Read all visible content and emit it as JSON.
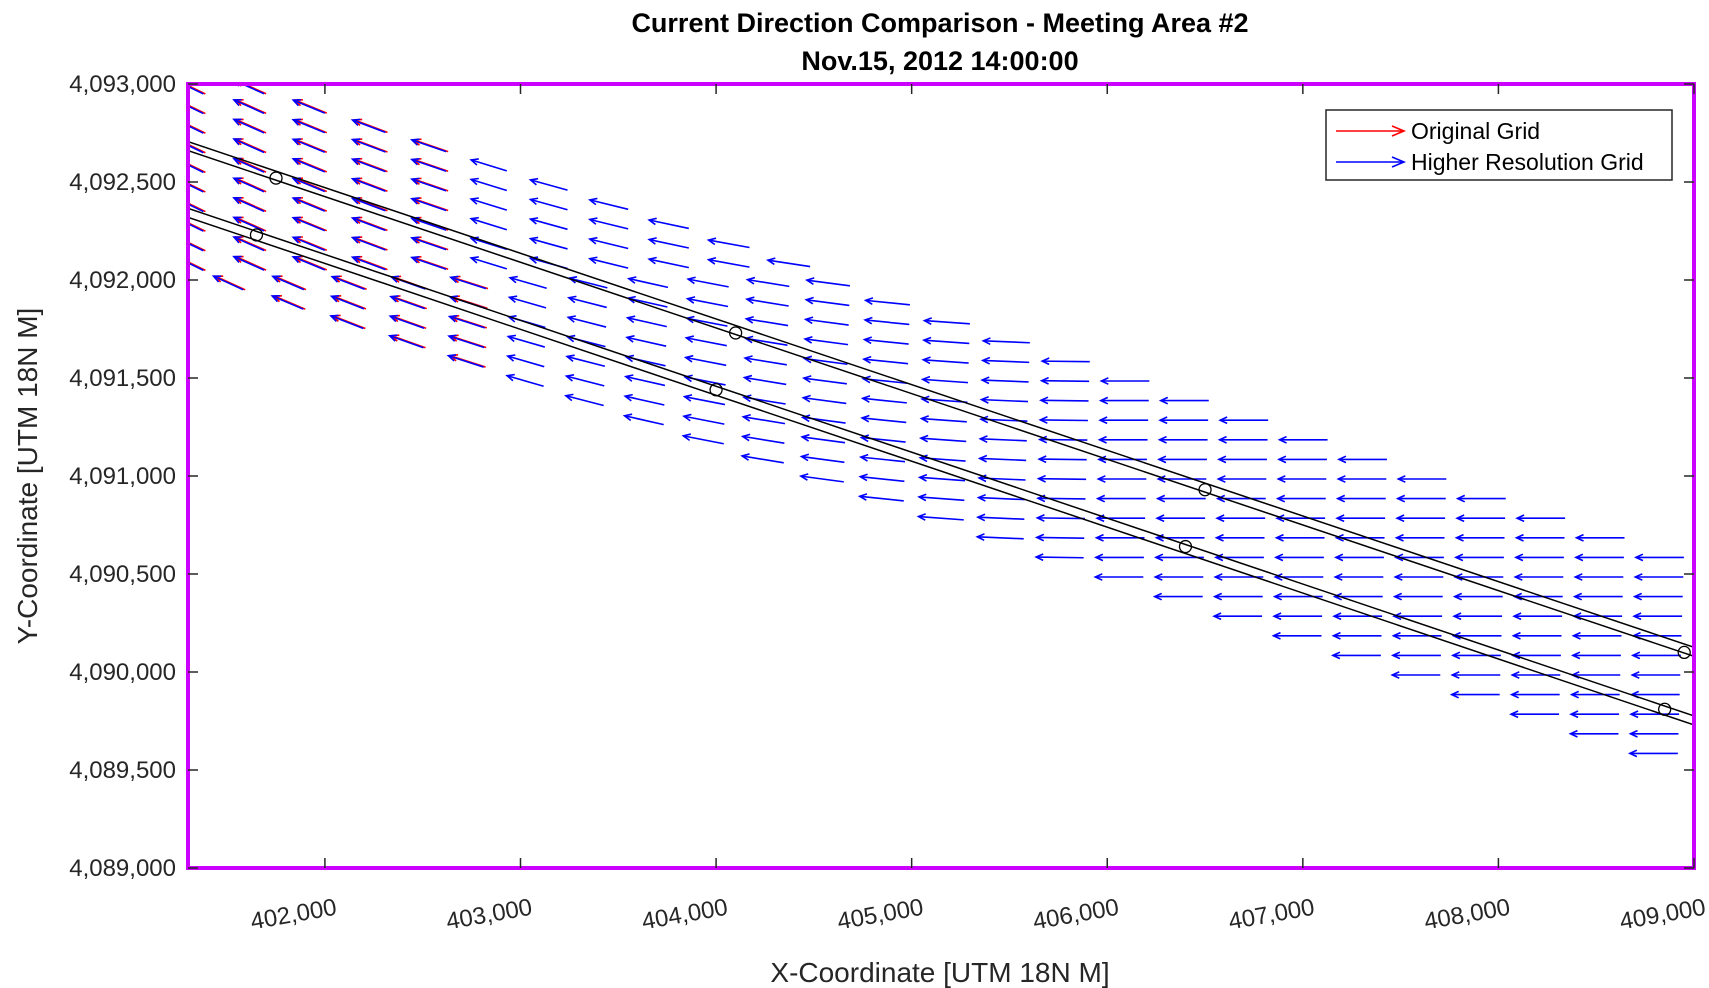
{
  "chart_data": {
    "type": "quiver",
    "title": "Current Direction Comparison - Meeting Area #2",
    "subtitle": "Nov.15, 2012 14:00:00",
    "xlabel": "X-Coordinate [UTM 18N M]",
    "ylabel": "Y-Coordinate [UTM 18N M]",
    "xlim": [
      401300,
      409000
    ],
    "ylim": [
      4089000,
      4093000
    ],
    "xticks": [
      402000,
      403000,
      404000,
      405000,
      406000,
      407000,
      408000,
      409000
    ],
    "xtick_labels": [
      "402,000",
      "403,000",
      "404,000",
      "405,000",
      "406,000",
      "407,000",
      "408,000",
      "409,000"
    ],
    "yticks": [
      4089000,
      4089500,
      4090000,
      4090500,
      4091000,
      4091500,
      4092000,
      4092500,
      4093000
    ],
    "ytick_labels": [
      "4,089,000",
      "4,089,500",
      "4,090,000",
      "4,090,500",
      "4,091,000",
      "4,091,500",
      "4,092,000",
      "4,092,500",
      "4,093,000"
    ],
    "grid": false,
    "axes_color": "#cc00ff",
    "legend": {
      "location": "top-right",
      "entries": [
        {
          "label": "Original Grid",
          "color": "#ff0000"
        },
        {
          "label": "Higher Resolution Grid",
          "color": "#0000ff"
        }
      ]
    },
    "series": [
      {
        "name": "Original Grid",
        "color": "#ff0000",
        "direction": "westward, rotating toward north-west at the north-west end"
      },
      {
        "name": "Higher Resolution Grid",
        "color": "#0000ff",
        "direction": "westward, rotating toward north-west at the north-west end"
      }
    ],
    "channel_lines": {
      "color": "#000000",
      "lines": [
        {
          "start": [
            401300,
            4092660
          ],
          "end": [
            409000,
            4090080
          ]
        },
        {
          "start": [
            401300,
            4092320
          ],
          "end": [
            409000,
            4089730
          ]
        }
      ],
      "markers": [
        [
          401750,
          4092520
        ],
        [
          401650,
          4092230
        ],
        [
          404100,
          4091730
        ],
        [
          404000,
          4091440
        ],
        [
          406500,
          4090930
        ],
        [
          406400,
          4090640
        ],
        [
          408950,
          4090100
        ],
        [
          408850,
          4089810
        ]
      ]
    }
  }
}
